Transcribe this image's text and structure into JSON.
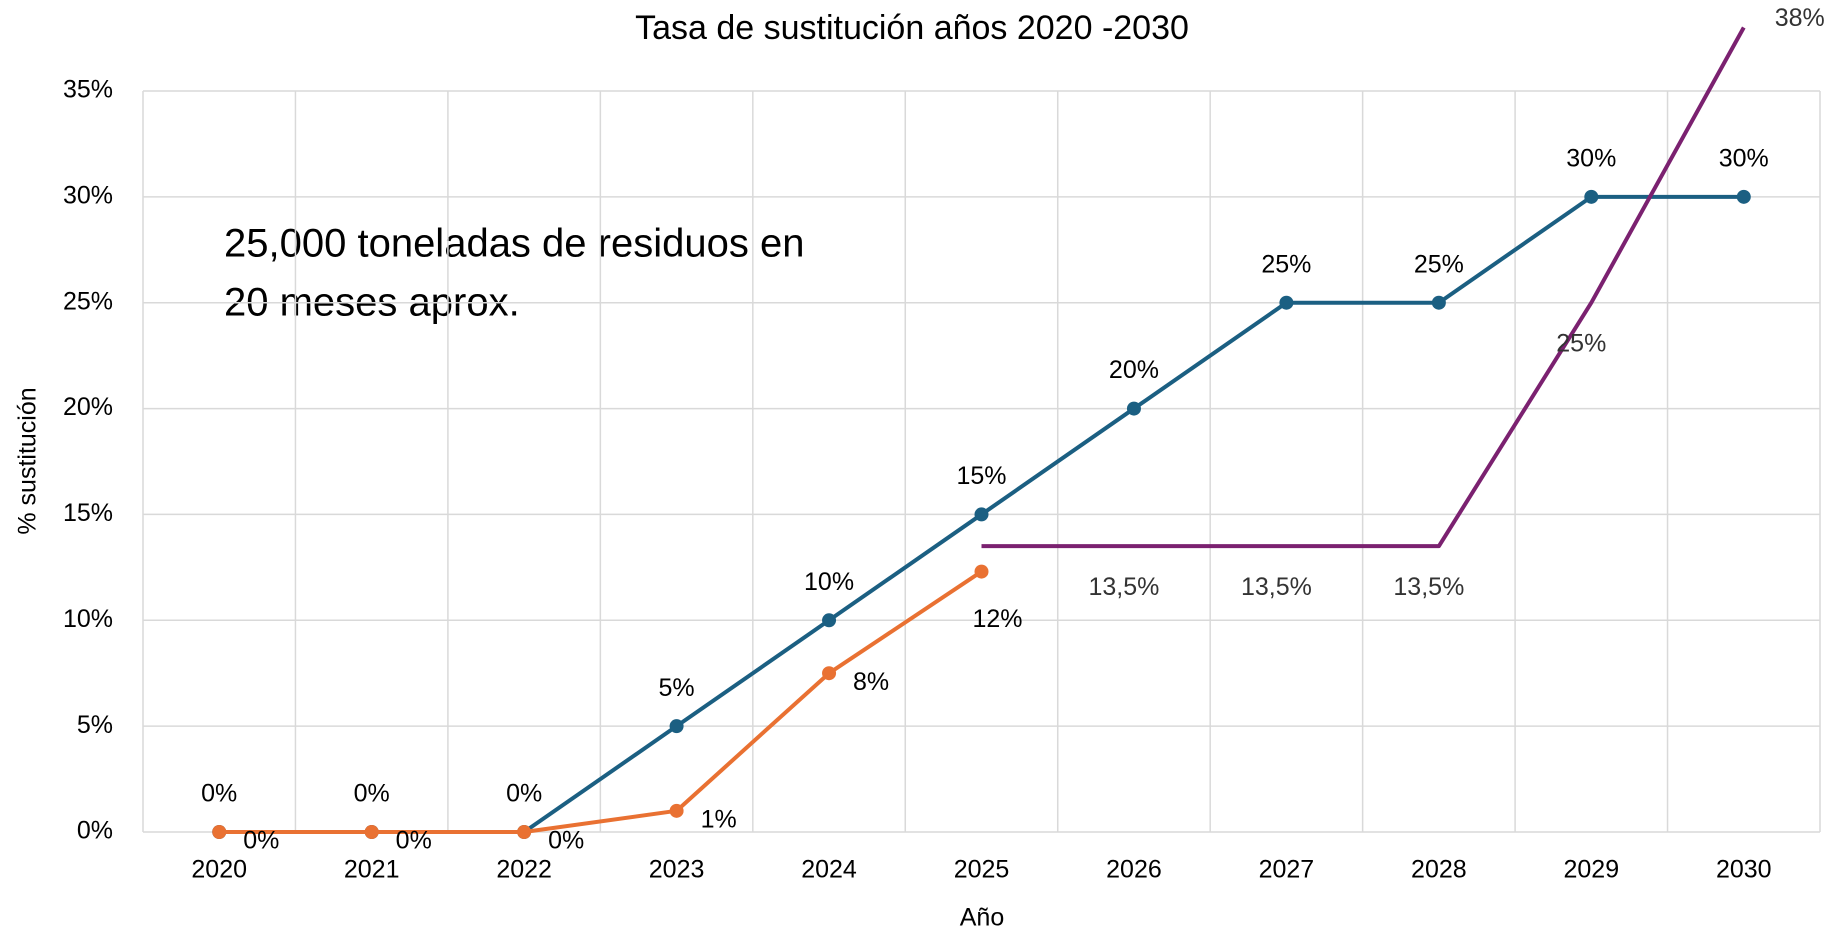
{
  "chart_data": {
    "type": "line",
    "title": "Tasa de sustitución años 2020 -2030",
    "x_label": "Año",
    "y_label": "% sustitución",
    "annotation": [
      "25,000 toneladas de residuos en",
      "20 meses aprox."
    ],
    "categories": [
      "2020",
      "2021",
      "2022",
      "2023",
      "2024",
      "2025",
      "2026",
      "2027",
      "2028",
      "2029",
      "2030"
    ],
    "series": [
      {
        "color": "#1b5f82",
        "values": [
          0,
          0,
          0,
          5,
          10,
          15,
          20,
          25,
          25,
          30,
          30
        ],
        "value_labels": [
          "0%",
          "0%",
          "0%",
          "5%",
          "10%",
          "15%",
          "20%",
          "25%",
          "25%",
          "30%",
          "30%"
        ],
        "label_position": "above"
      },
      {
        "color": "#e97132",
        "values": [
          0,
          0,
          0,
          1,
          7.5,
          12.3,
          null,
          null,
          null,
          null,
          null
        ],
        "value_labels": [
          "0%",
          "0%",
          "0%",
          "1%",
          "8%",
          "12%",
          null,
          null,
          null,
          null,
          null
        ],
        "label_position": "right"
      },
      {
        "color": "#7b2170",
        "values": [
          null,
          null,
          null,
          null,
          null,
          13.5,
          13.5,
          13.5,
          13.5,
          25,
          38
        ],
        "value_labels": [
          null,
          null,
          null,
          null,
          null,
          null,
          "13,5%",
          "13,5%",
          "13,5%",
          "25%",
          "38%"
        ],
        "label_position": "below",
        "markers": false
      }
    ],
    "ylim": [
      0,
      35
    ],
    "yticks": [
      {
        "value": 0,
        "label": "0%"
      },
      {
        "value": 5,
        "label": "5%"
      },
      {
        "value": 10,
        "label": "10%"
      },
      {
        "value": 15,
        "label": "15%"
      },
      {
        "value": 20,
        "label": "20%"
      },
      {
        "value": 25,
        "label": "25%"
      },
      {
        "value": 30,
        "label": "30%"
      },
      {
        "value": 35,
        "label": "35%"
      }
    ],
    "grid": true
  }
}
